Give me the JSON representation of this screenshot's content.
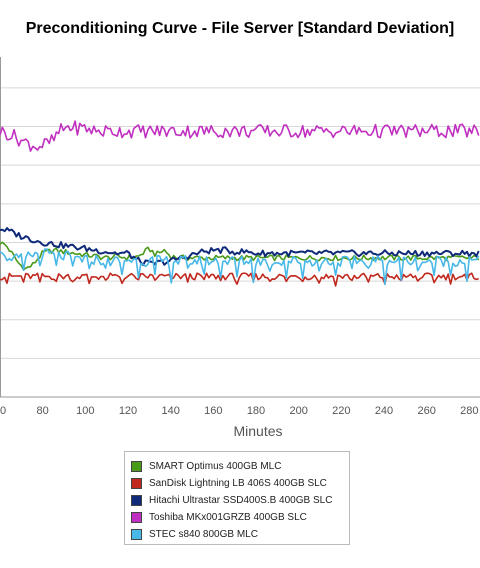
{
  "chart_data": {
    "type": "line",
    "title": "Preconditioning Curve - File Server [Standard Deviation]",
    "xlabel": "Minutes",
    "ylabel": "",
    "xlim": [
      60,
      285
    ],
    "ylim": [
      0,
      2.2
    ],
    "x_ticks": [
      "0",
      "80",
      "100",
      "120",
      "140",
      "160",
      "180",
      "200",
      "220",
      "240",
      "260",
      "280"
    ],
    "grid": true,
    "legend_position": "bottom",
    "series": [
      {
        "name": "SMART Optimus 400GB MLC",
        "color": "#4a9a1a",
        "points": [
          [
            60,
            1.0
          ],
          [
            63,
            0.98
          ],
          [
            66,
            0.92
          ],
          [
            69,
            0.86
          ],
          [
            72,
            0.83
          ],
          [
            75,
            0.85
          ],
          [
            78,
            0.9
          ],
          [
            80,
            0.93
          ],
          [
            85,
            0.95
          ],
          [
            90,
            0.94
          ],
          [
            95,
            0.93
          ],
          [
            100,
            0.92
          ],
          [
            105,
            0.91
          ],
          [
            110,
            0.9
          ],
          [
            115,
            0.91
          ],
          [
            120,
            0.9
          ],
          [
            125,
            0.91
          ],
          [
            130,
            0.96
          ],
          [
            133,
            0.92
          ],
          [
            137,
            0.95
          ],
          [
            140,
            0.91
          ],
          [
            145,
            0.9
          ],
          [
            150,
            0.9
          ],
          [
            160,
            0.9
          ],
          [
            180,
            0.9
          ],
          [
            200,
            0.9
          ],
          [
            220,
            0.9
          ],
          [
            240,
            0.9
          ],
          [
            260,
            0.9
          ],
          [
            285,
            0.9
          ]
        ]
      },
      {
        "name": "SanDisk Lightning LB 406S 400GB SLC",
        "color": "#c0281e",
        "points": [
          [
            60,
            0.78
          ],
          [
            80,
            0.78
          ],
          [
            100,
            0.78
          ],
          [
            120,
            0.78
          ],
          [
            140,
            0.78
          ],
          [
            160,
            0.78
          ],
          [
            180,
            0.78
          ],
          [
            200,
            0.78
          ],
          [
            220,
            0.78
          ],
          [
            240,
            0.78
          ],
          [
            260,
            0.78
          ],
          [
            285,
            0.78
          ]
        ]
      },
      {
        "name": "Hitachi Ultrastar SSD400S.B 400GB SLC",
        "color": "#102a7a",
        "points": [
          [
            60,
            1.09
          ],
          [
            65,
            1.07
          ],
          [
            70,
            1.04
          ],
          [
            75,
            1.02
          ],
          [
            80,
            1.0
          ],
          [
            85,
            0.99
          ],
          [
            90,
            0.98
          ],
          [
            95,
            0.97
          ],
          [
            100,
            0.96
          ],
          [
            105,
            0.95
          ],
          [
            110,
            0.94
          ],
          [
            115,
            0.93
          ],
          [
            120,
            0.93
          ],
          [
            125,
            0.88
          ],
          [
            130,
            0.86
          ],
          [
            135,
            0.87
          ],
          [
            140,
            0.88
          ],
          [
            145,
            0.9
          ],
          [
            150,
            0.92
          ],
          [
            155,
            0.94
          ],
          [
            160,
            0.95
          ],
          [
            165,
            0.95
          ],
          [
            170,
            0.94
          ],
          [
            175,
            0.94
          ],
          [
            180,
            0.93
          ],
          [
            190,
            0.93
          ],
          [
            200,
            0.93
          ],
          [
            210,
            0.93
          ],
          [
            220,
            0.93
          ],
          [
            230,
            0.93
          ],
          [
            240,
            0.93
          ],
          [
            250,
            0.93
          ],
          [
            260,
            0.93
          ],
          [
            270,
            0.93
          ],
          [
            285,
            0.93
          ]
        ]
      },
      {
        "name": "Toshiba MKx001GRZB 400GB SLC",
        "color": "#c030c0",
        "points": [
          [
            60,
            1.72
          ],
          [
            65,
            1.7
          ],
          [
            70,
            1.66
          ],
          [
            75,
            1.63
          ],
          [
            78,
            1.62
          ],
          [
            82,
            1.64
          ],
          [
            85,
            1.66
          ],
          [
            88,
            1.72
          ],
          [
            92,
            1.75
          ],
          [
            96,
            1.74
          ],
          [
            100,
            1.74
          ],
          [
            105,
            1.72
          ],
          [
            110,
            1.72
          ],
          [
            120,
            1.72
          ],
          [
            130,
            1.72
          ],
          [
            140,
            1.72
          ],
          [
            150,
            1.72
          ],
          [
            160,
            1.72
          ],
          [
            170,
            1.72
          ],
          [
            180,
            1.72
          ],
          [
            190,
            1.72
          ],
          [
            200,
            1.72
          ],
          [
            210,
            1.72
          ],
          [
            220,
            1.72
          ],
          [
            230,
            1.72
          ],
          [
            240,
            1.72
          ],
          [
            250,
            1.72
          ],
          [
            260,
            1.72
          ],
          [
            270,
            1.72
          ],
          [
            285,
            1.72
          ]
        ]
      },
      {
        "name": "STEC s840 800GB MLC",
        "color": "#48b8e8",
        "points": [
          [
            60,
            0.97
          ],
          [
            63,
            0.93
          ],
          [
            66,
            0.9
          ],
          [
            69,
            0.89
          ],
          [
            72,
            0.9
          ],
          [
            75,
            0.92
          ],
          [
            80,
            0.93
          ],
          [
            85,
            0.92
          ],
          [
            90,
            0.91
          ],
          [
            95,
            0.9
          ],
          [
            100,
            0.89
          ],
          [
            105,
            0.89
          ],
          [
            110,
            0.88
          ],
          [
            115,
            0.88
          ],
          [
            120,
            0.89
          ],
          [
            125,
            0.88
          ],
          [
            130,
            0.88
          ],
          [
            140,
            0.88
          ],
          [
            150,
            0.88
          ],
          [
            160,
            0.88
          ],
          [
            170,
            0.88
          ],
          [
            180,
            0.88
          ],
          [
            190,
            0.88
          ],
          [
            200,
            0.88
          ],
          [
            210,
            0.88
          ],
          [
            220,
            0.88
          ],
          [
            230,
            0.88
          ],
          [
            240,
            0.88
          ],
          [
            250,
            0.88
          ],
          [
            260,
            0.88
          ],
          [
            270,
            0.88
          ],
          [
            285,
            0.88
          ]
        ]
      }
    ]
  }
}
